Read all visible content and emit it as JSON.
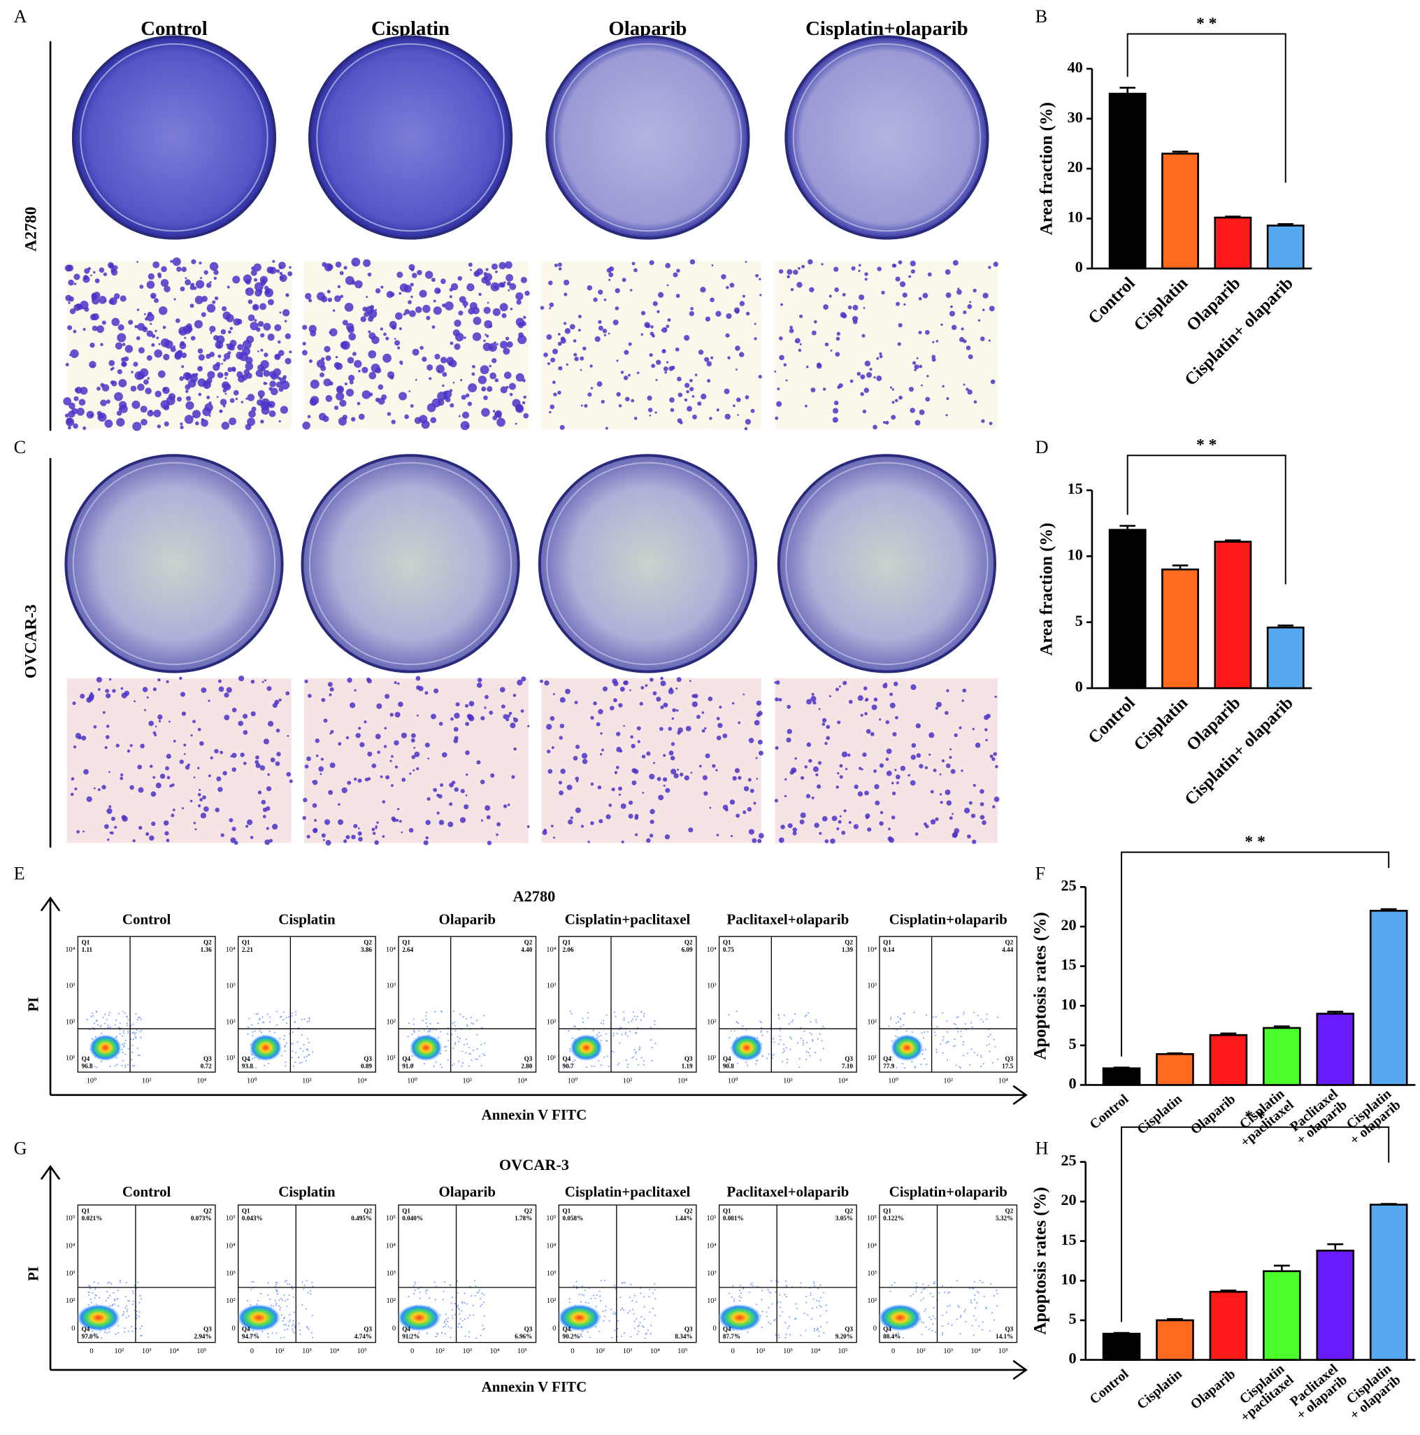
{
  "panel_labels": [
    "A",
    "B",
    "C",
    "D",
    "E",
    "F",
    "G",
    "H"
  ],
  "colony": {
    "groups": [
      "Control",
      "Cisplatin",
      "Olaparib",
      "Cisplatin+olaparib"
    ],
    "cell_lines": [
      "A2780",
      "OVCAR-3"
    ]
  },
  "flow": [
    {
      "title": "A2780",
      "y_axis": "PI",
      "x_axis": "Annexin V FITC",
      "groups": [
        "Control",
        "Cisplatin",
        "Olaparib",
        "Cisplatin+paclitaxel",
        "Paclitaxel+olaparib",
        "Cisplatin+olaparib"
      ],
      "quadrant_names": [
        "Q1",
        "Q2",
        "Q3",
        "Q4"
      ],
      "x_ticks": [
        "10⁰",
        "10²",
        "10⁴"
      ],
      "y_ticks": [
        "10¹",
        "10²",
        "10³",
        "10⁴"
      ],
      "plots": [
        [
          "1.11",
          "1.36",
          "0.72",
          "96.8"
        ],
        [
          "2.21",
          "3.86",
          "0.89",
          "93.8"
        ],
        [
          "2.64",
          "4.40",
          "2.80",
          "91.0"
        ],
        [
          "2.06",
          "6.09",
          "1.19",
          "90.7"
        ],
        [
          "0.75",
          "1.39",
          "7.10",
          "90.8"
        ],
        [
          "0.14",
          "4.44",
          "17.5",
          "77.9"
        ]
      ]
    },
    {
      "title": "OVCAR-3",
      "y_axis": "PI",
      "x_axis": "Annexin V FITC",
      "groups": [
        "Control",
        "Cisplatin",
        "Olaparib",
        "Cisplatin+paclitaxel",
        "Paclitaxel+olaparib",
        "Cisplatin+olaparib"
      ],
      "quadrant_names": [
        "Q1",
        "Q2",
        "Q3",
        "Q4"
      ],
      "x_ticks": [
        "0",
        "10²",
        "10³",
        "10⁴",
        "10⁵"
      ],
      "y_ticks": [
        "0",
        "10²",
        "10³",
        "10⁴",
        "10⁵"
      ],
      "plots": [
        [
          "0.021%",
          "0.073%",
          "2.94%",
          "97.0%"
        ],
        [
          "0.043%",
          "0.495%",
          "4.74%",
          "94.7%"
        ],
        [
          "0.040%",
          "1.78%",
          "6.96%",
          "91.2%"
        ],
        [
          "0.058%",
          "1.44%",
          "8.34%",
          "90.2%"
        ],
        [
          "0.081%",
          "3.05%",
          "9.20%",
          "87.7%"
        ],
        [
          "0.122%",
          "5.32%",
          "14.1%",
          "80.4%"
        ]
      ]
    }
  ],
  "chart_data": [
    {
      "type": "bar",
      "y_label": "Area fraction (%)",
      "annotation": "* *",
      "categories": [
        "Control",
        "Cisplatin",
        "Olaparib",
        "Cisplatin+ olaparib"
      ],
      "values": [
        35,
        23,
        10.2,
        8.6
      ],
      "errors": [
        1.2,
        0.4,
        0.2,
        0.3
      ],
      "colors": [
        "#000000",
        "#ff6a1f",
        "#ff1a1a",
        "#56a8f0"
      ],
      "ylim": [
        0,
        40
      ],
      "yticks": [
        0,
        10,
        20,
        30,
        40
      ]
    },
    {
      "type": "bar",
      "y_label": "Area fraction (%)",
      "annotation": "* *",
      "categories": [
        "Control",
        "Cisplatin",
        "Olaparib",
        "Cisplatin+ olaparib"
      ],
      "values": [
        12,
        9,
        11.1,
        4.6
      ],
      "errors": [
        0.3,
        0.3,
        0.1,
        0.15
      ],
      "colors": [
        "#000000",
        "#ff6a1f",
        "#ff1a1a",
        "#56a8f0"
      ],
      "ylim": [
        0,
        15
      ],
      "yticks": [
        0,
        5,
        10,
        15
      ]
    },
    {
      "type": "bar",
      "y_label": "Apoptosis rates (%)",
      "annotation": "* *",
      "categories": [
        [
          "Control"
        ],
        [
          "Cisplatin"
        ],
        [
          "Olaparib"
        ],
        [
          "Cisplatin",
          "+paclitaxel"
        ],
        [
          "Paclitaxel",
          "+ olaparib"
        ],
        [
          "Cisplatin",
          "+ olaparib"
        ]
      ],
      "values": [
        2.1,
        3.9,
        6.3,
        7.2,
        9.0,
        22
      ],
      "errors": [
        0.1,
        0.1,
        0.2,
        0.2,
        0.25,
        0.2
      ],
      "colors": [
        "#000000",
        "#ff6a1f",
        "#ff1a1a",
        "#4cff2a",
        "#6a1aff",
        "#56a8f0"
      ],
      "ylim": [
        0,
        25
      ],
      "yticks": [
        0,
        5,
        10,
        15,
        20,
        25
      ]
    },
    {
      "type": "bar",
      "y_label": "Apoptosis rates (%)",
      "annotation": "* *",
      "categories": [
        [
          "Control"
        ],
        [
          "Cisplatin"
        ],
        [
          "Olaparib"
        ],
        [
          "Cisplatin",
          "+paclitaxel"
        ],
        [
          "Paclitaxel",
          "+ olaparib"
        ],
        [
          "Cisplatin",
          "+ olaparib"
        ]
      ],
      "values": [
        3.3,
        5.0,
        8.6,
        11.2,
        13.8,
        19.6
      ],
      "errors": [
        0.1,
        0.15,
        0.15,
        0.7,
        0.8,
        0.1
      ],
      "colors": [
        "#000000",
        "#ff6a1f",
        "#ff1a1a",
        "#4cff2a",
        "#6a1aff",
        "#56a8f0"
      ],
      "ylim": [
        0,
        25
      ],
      "yticks": [
        0,
        5,
        10,
        15,
        20,
        25
      ]
    }
  ]
}
